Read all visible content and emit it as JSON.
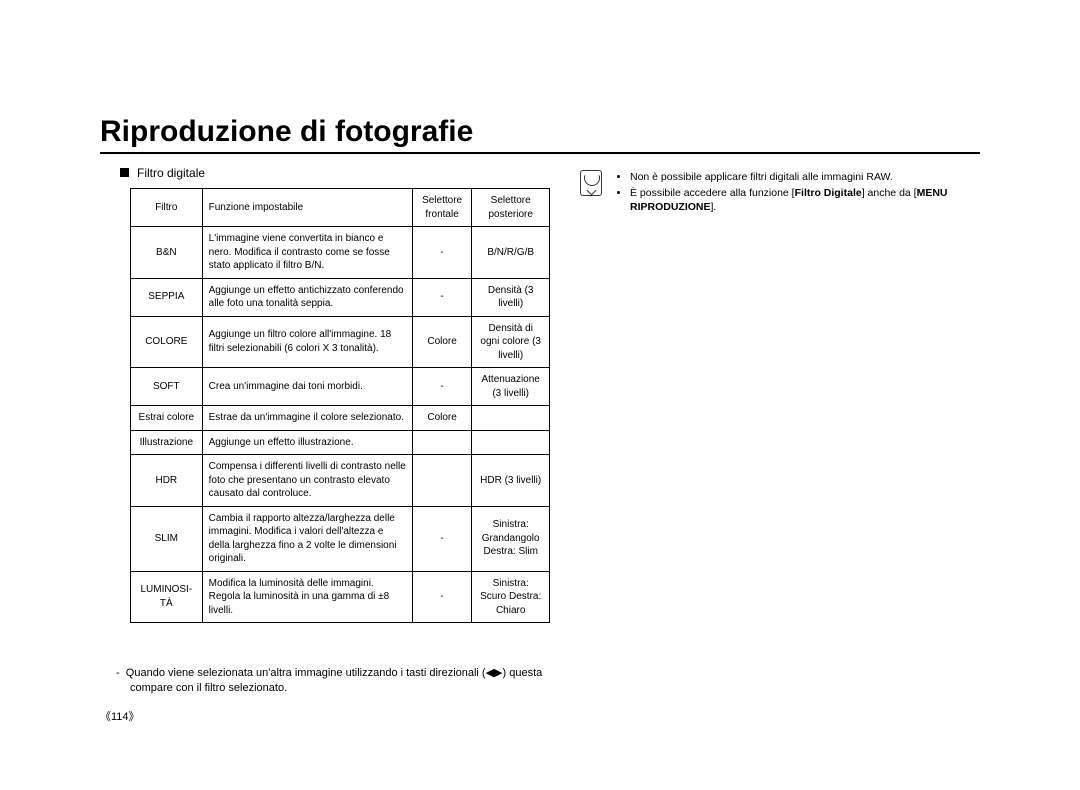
{
  "title": "Riproduzione di fotografie",
  "section_label": "Filtro digitale",
  "table": {
    "head": {
      "c1": "Filtro",
      "c2": "Funzione impostabile",
      "c3": "Selettore frontale",
      "c4": "Selettore posteriore"
    },
    "rows": [
      {
        "filtro": "B&N",
        "funz": "L'immagine viene convertita in bianco e nero. Modifica il contrasto come se fosse stato applicato il filtro B/N.",
        "s1": "-",
        "s2": "B/N/R/G/B"
      },
      {
        "filtro": "SEPPIA",
        "funz": "Aggiunge un effetto antichizzato conferendo alle foto una tonalità seppia.",
        "s1": "-",
        "s2": "Densità (3 livelli)"
      },
      {
        "filtro": "COLORE",
        "funz": "Aggiunge un filtro colore all'immagine. 18 filtri selezionabili (6 colori X 3 tonalità).",
        "s1": "Colore",
        "s2": "Densità di ogni colore (3 livelli)"
      },
      {
        "filtro": "SOFT",
        "funz": "Crea un'immagine dai toni morbidi.",
        "s1": "-",
        "s2": "Attenuazione (3 livelli)"
      },
      {
        "filtro": "Estrai colore",
        "funz": "Estrae da un'immagine il colore selezionato.",
        "s1": "Colore",
        "s2": ""
      },
      {
        "filtro": "Illustrazione",
        "funz": "Aggiunge un effetto illustrazione.",
        "s1": "",
        "s2": ""
      },
      {
        "filtro": "HDR",
        "funz": "Compensa i differenti livelli di contrasto nelle foto che presentano un contrasto elevato causato dal controluce.",
        "s1": "",
        "s2": "HDR (3 livelli)"
      },
      {
        "filtro": "SLIM",
        "funz": "Cambia il rapporto altezza/larghezza delle immagini. Modifica i valori dell'altezza e della larghezza fino a 2 volte le dimensioni originali.",
        "s1": "-",
        "s2": "Sinistra: Grandangolo Destra: Slim"
      },
      {
        "filtro": "LUMINOSI-TÀ",
        "funz": "Modifica la luminosità delle immagini. Regola la luminosità in una gamma di ±8 livelli.",
        "s1": "-",
        "s2": "Sinistra: Scuro Destra: Chiaro"
      }
    ]
  },
  "footnote_lead": "-",
  "footnote_text": "Quando viene selezionata un'altra immagine utilizzando i tasti direzionali (◀▶) questa compare con il filtro selezionato.",
  "pagenum": "《114》",
  "notes": {
    "n1": "Non è possibile applicare filtri digitali alle immagini RAW.",
    "n2_a": "È possibile accedere alla funzione [",
    "n2_b": "Filtro Digitale",
    "n2_c": "] anche da [",
    "n2_d": "MENU RIPRODUZIONE",
    "n2_e": "]."
  }
}
